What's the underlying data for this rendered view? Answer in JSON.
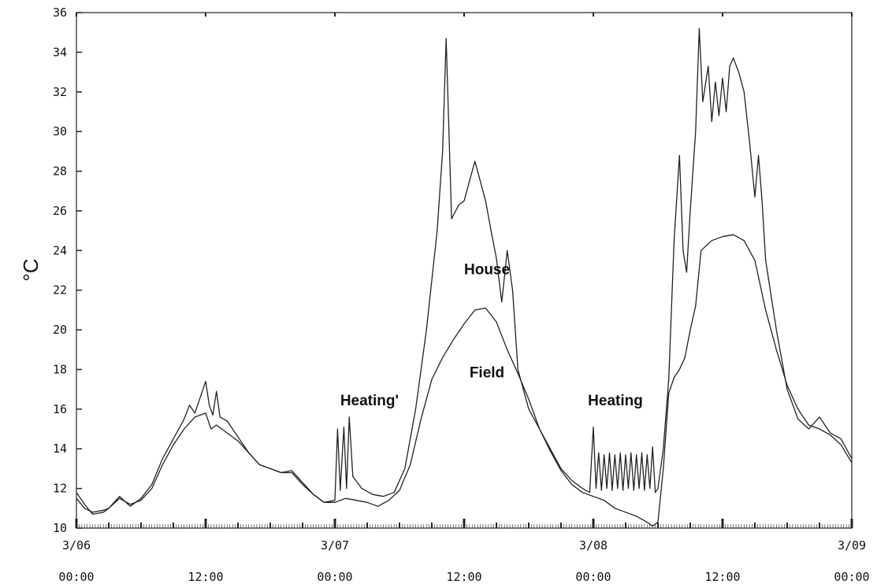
{
  "chart_data": {
    "type": "line",
    "title": "",
    "xlabel": "",
    "ylabel": "°C",
    "ylim": [
      10,
      36
    ],
    "xlim": [
      "3/06 00:00",
      "3/09 00:00"
    ],
    "grid": false,
    "x_ticks": [
      {
        "line1": "3/06",
        "line2": "00:00",
        "hours": 0
      },
      {
        "line1": "",
        "line2": "12:00",
        "hours": 12
      },
      {
        "line1": "3/07",
        "line2": "00:00",
        "hours": 24
      },
      {
        "line1": "",
        "line2": "12:00",
        "hours": 36
      },
      {
        "line1": "3/08",
        "line2": "00:00",
        "hours": 48
      },
      {
        "line1": "",
        "line2": "12:00",
        "hours": 60
      },
      {
        "line1": "3/09",
        "line2": "00:00",
        "hours": 72
      }
    ],
    "y_ticks": [
      10,
      12,
      14,
      16,
      18,
      20,
      22,
      24,
      26,
      28,
      30,
      32,
      34,
      36
    ],
    "annotations": [
      {
        "id": "house",
        "text": "House",
        "x": "3/07 12:00",
        "y": 22.8
      },
      {
        "id": "field",
        "text": "Field",
        "x": "3/07 12:30",
        "y": 17.6
      },
      {
        "id": "heating-1",
        "text": "Heating'",
        "x": "3/07 00:30",
        "y": 16.2
      },
      {
        "id": "heating-2",
        "text": "Heating",
        "x": "3/07 23:30",
        "y": 16.2
      }
    ],
    "series": [
      {
        "id": "house",
        "points": [
          [
            "3/06 00:00",
            11.8
          ],
          [
            "3/06 00:45",
            11.2
          ],
          [
            "3/06 01:30",
            10.7
          ],
          [
            "3/06 02:30",
            10.8
          ],
          [
            "3/06 03:00",
            11.0
          ],
          [
            "3/06 04:00",
            11.6
          ],
          [
            "3/06 05:00",
            11.1
          ],
          [
            "3/06 06:00",
            11.5
          ],
          [
            "3/06 07:00",
            12.2
          ],
          [
            "3/06 08:00",
            13.5
          ],
          [
            "3/06 09:00",
            14.5
          ],
          [
            "3/06 10:00",
            15.5
          ],
          [
            "3/06 10:30",
            16.2
          ],
          [
            "3/06 11:00",
            15.8
          ],
          [
            "3/06 11:30",
            16.6
          ],
          [
            "3/06 12:00",
            17.4
          ],
          [
            "3/06 12:20",
            16.2
          ],
          [
            "3/06 12:40",
            15.7
          ],
          [
            "3/06 13:00",
            16.9
          ],
          [
            "3/06 13:20",
            15.6
          ],
          [
            "3/06 14:00",
            15.4
          ],
          [
            "3/06 15:00",
            14.6
          ],
          [
            "3/06 16:00",
            13.8
          ],
          [
            "3/06 17:00",
            13.2
          ],
          [
            "3/06 18:00",
            13.0
          ],
          [
            "3/06 19:00",
            12.8
          ],
          [
            "3/06 20:00",
            12.9
          ],
          [
            "3/06 21:00",
            12.3
          ],
          [
            "3/06 22:00",
            11.7
          ],
          [
            "3/06 23:00",
            11.3
          ],
          [
            "3/07 00:00",
            11.4
          ],
          [
            "3/07 00:15",
            15.0
          ],
          [
            "3/07 00:30",
            11.9
          ],
          [
            "3/07 00:50",
            15.1
          ],
          [
            "3/07 01:05",
            12.0
          ],
          [
            "3/07 01:20",
            15.6
          ],
          [
            "3/07 01:40",
            12.6
          ],
          [
            "3/07 02:30",
            12.0
          ],
          [
            "3/07 03:30",
            11.7
          ],
          [
            "3/07 04:30",
            11.6
          ],
          [
            "3/07 05:30",
            11.8
          ],
          [
            "3/07 06:30",
            13.0
          ],
          [
            "3/07 07:30",
            16.0
          ],
          [
            "3/07 08:30",
            20.0
          ],
          [
            "3/07 09:30",
            25.0
          ],
          [
            "3/07 10:00",
            29.0
          ],
          [
            "3/07 10:20",
            34.7
          ],
          [
            "3/07 10:50",
            25.6
          ],
          [
            "3/07 11:30",
            26.3
          ],
          [
            "3/07 12:00",
            26.5
          ],
          [
            "3/07 12:30",
            27.5
          ],
          [
            "3/07 13:00",
            28.5
          ],
          [
            "3/07 13:30",
            27.5
          ],
          [
            "3/07 14:00",
            26.5
          ],
          [
            "3/07 14:30",
            25.0
          ],
          [
            "3/07 15:00",
            23.6
          ],
          [
            "3/07 15:30",
            21.4
          ],
          [
            "3/07 16:00",
            24.0
          ],
          [
            "3/07 16:30",
            22.0
          ],
          [
            "3/07 17:00",
            18.0
          ],
          [
            "3/07 18:00",
            16.0
          ],
          [
            "3/07 19:00",
            15.0
          ],
          [
            "3/07 20:00",
            14.0
          ],
          [
            "3/07 21:00",
            13.0
          ],
          [
            "3/07 22:00",
            12.4
          ],
          [
            "3/07 23:00",
            12.0
          ],
          [
            "3/07 23:40",
            11.8
          ],
          [
            "3/08 00:00",
            15.1
          ],
          [
            "3/08 00:15",
            12.0
          ],
          [
            "3/08 00:30",
            13.8
          ],
          [
            "3/08 00:45",
            11.9
          ],
          [
            "3/08 01:00",
            13.7
          ],
          [
            "3/08 01:15",
            12.0
          ],
          [
            "3/08 01:30",
            13.8
          ],
          [
            "3/08 01:45",
            11.9
          ],
          [
            "3/08 02:00",
            13.7
          ],
          [
            "3/08 02:15",
            12.0
          ],
          [
            "3/08 02:30",
            13.8
          ],
          [
            "3/08 02:45",
            11.9
          ],
          [
            "3/08 03:00",
            13.7
          ],
          [
            "3/08 03:15",
            12.0
          ],
          [
            "3/08 03:30",
            13.8
          ],
          [
            "3/08 03:45",
            11.9
          ],
          [
            "3/08 04:00",
            13.7
          ],
          [
            "3/08 04:15",
            12.0
          ],
          [
            "3/08 04:30",
            13.8
          ],
          [
            "3/08 04:45",
            11.9
          ],
          [
            "3/08 05:00",
            13.7
          ],
          [
            "3/08 05:15",
            12.0
          ],
          [
            "3/08 05:30",
            14.1
          ],
          [
            "3/08 05:45",
            11.8
          ],
          [
            "3/08 06:00",
            12.0
          ],
          [
            "3/08 06:30",
            14.0
          ],
          [
            "3/08 07:00",
            17.5
          ],
          [
            "3/08 07:30",
            24.5
          ],
          [
            "3/08 08:00",
            28.8
          ],
          [
            "3/08 08:20",
            24.0
          ],
          [
            "3/08 08:40",
            22.9
          ],
          [
            "3/08 09:00",
            26.0
          ],
          [
            "3/08 09:30",
            30.0
          ],
          [
            "3/08 09:50",
            35.2
          ],
          [
            "3/08 10:10",
            31.5
          ],
          [
            "3/08 10:40",
            33.3
          ],
          [
            "3/08 11:00",
            30.5
          ],
          [
            "3/08 11:20",
            32.5
          ],
          [
            "3/08 11:40",
            30.8
          ],
          [
            "3/08 12:00",
            32.7
          ],
          [
            "3/08 12:20",
            31.0
          ],
          [
            "3/08 12:40",
            33.3
          ],
          [
            "3/08 13:00",
            33.7
          ],
          [
            "3/08 13:30",
            33.0
          ],
          [
            "3/08 14:00",
            32.0
          ],
          [
            "3/08 14:30",
            29.5
          ],
          [
            "3/08 15:00",
            26.7
          ],
          [
            "3/08 15:20",
            28.8
          ],
          [
            "3/08 15:40",
            26.5
          ],
          [
            "3/08 16:00",
            23.5
          ],
          [
            "3/08 17:00",
            20.0
          ],
          [
            "3/08 18:00",
            17.0
          ],
          [
            "3/08 19:00",
            15.5
          ],
          [
            "3/08 20:00",
            15.0
          ],
          [
            "3/08 21:00",
            15.6
          ],
          [
            "3/08 22:00",
            14.8
          ],
          [
            "3/08 23:00",
            14.5
          ],
          [
            "3/09 00:00",
            13.5
          ]
        ]
      },
      {
        "id": "field",
        "points": [
          [
            "3/06 00:00",
            11.5
          ],
          [
            "3/06 00:45",
            11.0
          ],
          [
            "3/06 01:30",
            10.8
          ],
          [
            "3/06 02:30",
            10.9
          ],
          [
            "3/06 03:00",
            11.0
          ],
          [
            "3/06 04:00",
            11.5
          ],
          [
            "3/06 05:00",
            11.2
          ],
          [
            "3/06 06:00",
            11.4
          ],
          [
            "3/06 07:00",
            12.0
          ],
          [
            "3/06 08:00",
            13.2
          ],
          [
            "3/06 09:00",
            14.2
          ],
          [
            "3/06 10:00",
            15.0
          ],
          [
            "3/06 11:00",
            15.6
          ],
          [
            "3/06 12:00",
            15.8
          ],
          [
            "3/06 12:30",
            15.0
          ],
          [
            "3/06 13:00",
            15.2
          ],
          [
            "3/06 14:00",
            14.8
          ],
          [
            "3/06 15:00",
            14.4
          ],
          [
            "3/06 16:00",
            13.8
          ],
          [
            "3/06 17:00",
            13.2
          ],
          [
            "3/06 18:00",
            13.0
          ],
          [
            "3/06 19:00",
            12.8
          ],
          [
            "3/06 20:00",
            12.8
          ],
          [
            "3/06 21:00",
            12.2
          ],
          [
            "3/06 22:00",
            11.7
          ],
          [
            "3/06 23:00",
            11.3
          ],
          [
            "3/07 00:00",
            11.3
          ],
          [
            "3/07 01:00",
            11.5
          ],
          [
            "3/07 02:00",
            11.4
          ],
          [
            "3/07 03:00",
            11.3
          ],
          [
            "3/07 04:00",
            11.1
          ],
          [
            "3/07 05:00",
            11.4
          ],
          [
            "3/07 06:00",
            11.9
          ],
          [
            "3/07 07:00",
            13.2
          ],
          [
            "3/07 08:00",
            15.5
          ],
          [
            "3/07 09:00",
            17.5
          ],
          [
            "3/07 10:00",
            18.6
          ],
          [
            "3/07 11:00",
            19.5
          ],
          [
            "3/07 12:00",
            20.3
          ],
          [
            "3/07 13:00",
            21.0
          ],
          [
            "3/07 14:00",
            21.1
          ],
          [
            "3/07 15:00",
            20.4
          ],
          [
            "3/07 16:00",
            19.0
          ],
          [
            "3/07 17:00",
            17.8
          ],
          [
            "3/07 18:00",
            16.5
          ],
          [
            "3/07 19:00",
            15.0
          ],
          [
            "3/07 20:00",
            13.9
          ],
          [
            "3/07 21:00",
            12.9
          ],
          [
            "3/07 22:00",
            12.2
          ],
          [
            "3/07 23:00",
            11.8
          ],
          [
            "3/08 00:00",
            11.6
          ],
          [
            "3/08 01:00",
            11.4
          ],
          [
            "3/08 02:00",
            11.0
          ],
          [
            "3/08 03:00",
            10.8
          ],
          [
            "3/08 04:00",
            10.6
          ],
          [
            "3/08 05:00",
            10.3
          ],
          [
            "3/08 05:30",
            10.1
          ],
          [
            "3/08 06:00",
            10.3
          ],
          [
            "3/08 06:30",
            13.0
          ],
          [
            "3/08 07:00",
            16.8
          ],
          [
            "3/08 07:30",
            17.6
          ],
          [
            "3/08 08:00",
            18.0
          ],
          [
            "3/08 08:30",
            18.6
          ],
          [
            "3/08 09:00",
            20.0
          ],
          [
            "3/08 09:30",
            21.2
          ],
          [
            "3/08 10:00",
            24.0
          ],
          [
            "3/08 11:00",
            24.5
          ],
          [
            "3/08 12:00",
            24.7
          ],
          [
            "3/08 13:00",
            24.8
          ],
          [
            "3/08 14:00",
            24.5
          ],
          [
            "3/08 15:00",
            23.5
          ],
          [
            "3/08 16:00",
            21.0
          ],
          [
            "3/08 17:00",
            19.0
          ],
          [
            "3/08 18:00",
            17.2
          ],
          [
            "3/08 19:00",
            16.0
          ],
          [
            "3/08 20:00",
            15.2
          ],
          [
            "3/08 21:00",
            15.0
          ],
          [
            "3/08 22:00",
            14.7
          ],
          [
            "3/08 23:00",
            14.2
          ],
          [
            "3/09 00:00",
            13.3
          ]
        ]
      }
    ]
  }
}
